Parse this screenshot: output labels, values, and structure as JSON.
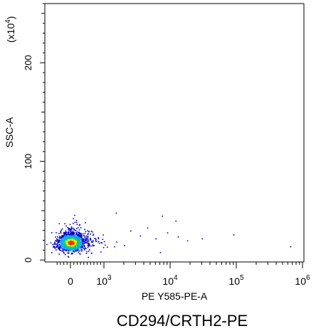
{
  "chart_data": {
    "type": "scatter",
    "title": "CD294/CRTH2-PE",
    "xlabel": "PE Y585-PE-A",
    "ylabel": "SSC-A",
    "y_scale_label": "(x10",
    "y_scale_exponent": "4",
    "y_scale_close": ")",
    "x_scale": "biexponential",
    "xlim": [
      -400,
      1000000
    ],
    "ylim": [
      -2,
      260
    ],
    "y_major_ticks": [
      {
        "value": 0,
        "label": "0"
      },
      {
        "value": 100,
        "label": "100"
      },
      {
        "value": 200,
        "label": "200"
      }
    ],
    "x_major_ticks": [
      {
        "value": 0,
        "base": "0",
        "exp": ""
      },
      {
        "value": 1000,
        "base": "10",
        "exp": "3"
      },
      {
        "value": 10000,
        "base": "10",
        "exp": "4"
      },
      {
        "value": 100000,
        "base": "10",
        "exp": "5"
      },
      {
        "value": 1000000,
        "base": "10",
        "exp": "6"
      }
    ],
    "grid": false,
    "density_colors": [
      "#0000cc",
      "#00aaff",
      "#00d27a",
      "#e8e800",
      "#ff2a00"
    ],
    "population": {
      "description_visible": "dense cluster",
      "center_x": 0,
      "center_y": 18,
      "scatter_x_range": [
        -300,
        5000
      ],
      "scatter_y_range": [
        5,
        55
      ]
    },
    "outliers": [
      {
        "x": 1500,
        "y": 48
      },
      {
        "x": 2500,
        "y": 30
      },
      {
        "x": 3500,
        "y": 25
      },
      {
        "x": 4500,
        "y": 33
      },
      {
        "x": 6000,
        "y": 22
      },
      {
        "x": 7500,
        "y": 45
      },
      {
        "x": 9000,
        "y": 28
      },
      {
        "x": 12000,
        "y": 40
      },
      {
        "x": 13000,
        "y": 24
      },
      {
        "x": 30000,
        "y": 22
      },
      {
        "x": 90000,
        "y": 26
      },
      {
        "x": 650000,
        "y": 14
      },
      {
        "x": 7000,
        "y": 8
      },
      {
        "x": 18000,
        "y": 20
      },
      {
        "x": 2000,
        "y": 15
      }
    ]
  }
}
